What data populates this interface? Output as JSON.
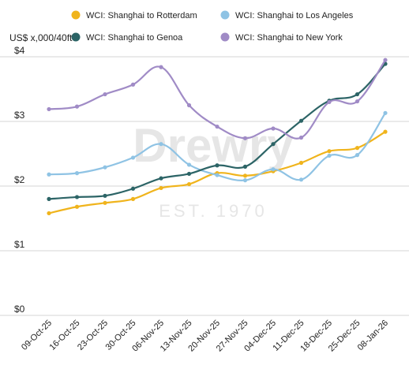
{
  "chart_data": {
    "type": "line",
    "title": "",
    "ylabel": "US$ x,000/40ft",
    "xlabel": "",
    "ylim": [
      0,
      4
    ],
    "yticks": [
      0,
      1,
      2,
      3,
      4
    ],
    "ytick_labels": [
      "$0",
      "$1",
      "$2",
      "$3",
      "$4"
    ],
    "categories": [
      "09-Oct-25",
      "16-Oct-25",
      "23-Oct-25",
      "30-Oct-25",
      "06-Nov-25",
      "13-Nov-25",
      "20-Nov-25",
      "27-Nov-25",
      "04-Dec-25",
      "11-Dec-25",
      "18-Dec-25",
      "25-Dec-25",
      "08-Jan-26"
    ],
    "grid": true,
    "legend_position": "top",
    "series": [
      {
        "name": "WCI: Shanghai to Rotterdam",
        "color": "#f0b41c",
        "values": [
          1.58,
          1.68,
          1.74,
          1.8,
          1.97,
          2.03,
          2.2,
          2.16,
          2.23,
          2.36,
          2.54,
          2.59,
          2.84
        ]
      },
      {
        "name": "WCI: Shanghai to Los Angeles",
        "color": "#8fc3e4",
        "values": [
          2.18,
          2.2,
          2.29,
          2.44,
          2.65,
          2.33,
          2.17,
          2.09,
          2.26,
          2.1,
          2.47,
          2.48,
          3.13
        ]
      },
      {
        "name": "WCI: Shanghai to Genoa",
        "color": "#2c6466",
        "values": [
          1.8,
          1.83,
          1.85,
          1.96,
          2.12,
          2.19,
          2.32,
          2.3,
          2.65,
          3.01,
          3.32,
          3.42,
          3.89
        ]
      },
      {
        "name": "WCI: Shanghai to New York",
        "color": "#a08bc6",
        "values": [
          3.19,
          3.23,
          3.42,
          3.57,
          3.84,
          3.25,
          2.92,
          2.74,
          2.89,
          2.75,
          3.3,
          3.31,
          3.95
        ]
      }
    ],
    "watermark": {
      "brand": "Drewry",
      "tagline": "EST. 1970"
    }
  }
}
